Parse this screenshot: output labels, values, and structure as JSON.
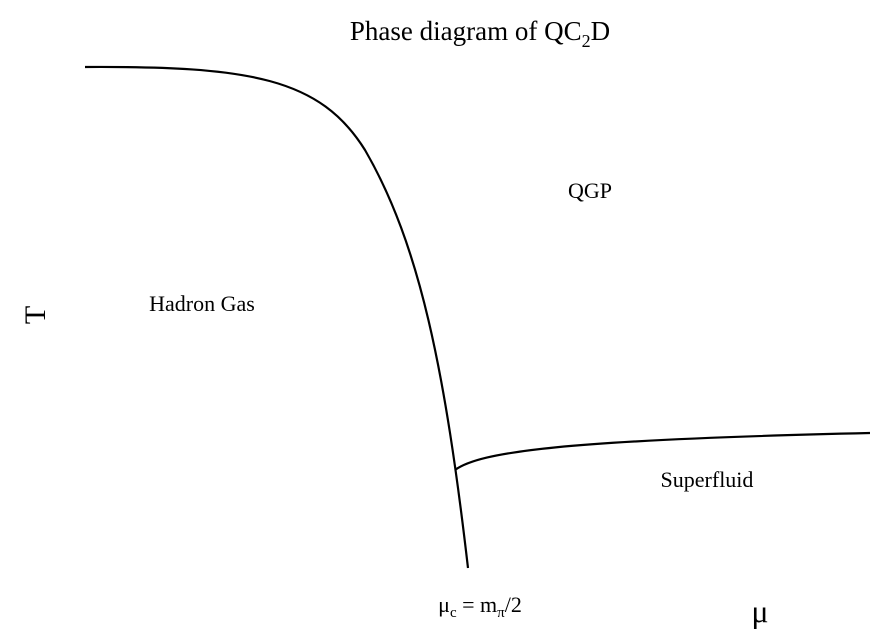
{
  "title": {
    "main": "Phase diagram of QC",
    "sub": "2",
    "end": "D"
  },
  "axes": {
    "y_label": "T",
    "x_label": "μ"
  },
  "regions": {
    "qgp": "QGP",
    "hadron": "Hadron Gas",
    "superfluid": "Superfluid"
  },
  "critical": {
    "mu": "μ",
    "mu_sub": "c",
    "eq": " = m",
    "pi": "π",
    "end": "/2"
  }
}
